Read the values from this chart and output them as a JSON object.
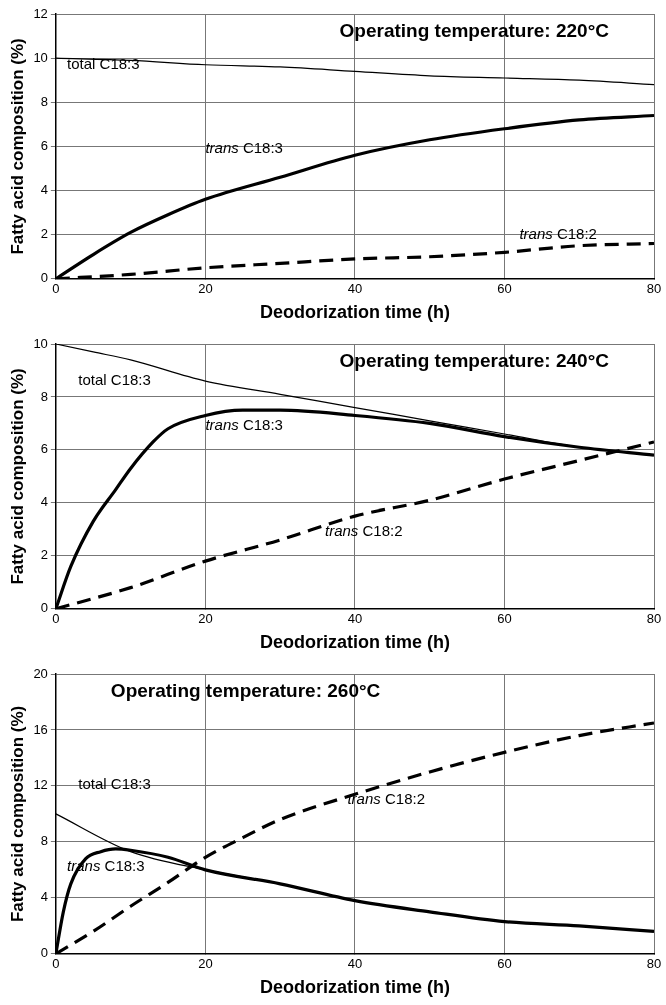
{
  "chart_data": [
    {
      "type": "line",
      "title": "Operating temperature: 220°C",
      "xlabel": "Deodorization time (h)",
      "ylabel": "Fatty acid composition (%)",
      "xlim": [
        0,
        80
      ],
      "xticks": [
        0,
        20,
        40,
        60,
        80
      ],
      "ylim": [
        0,
        12
      ],
      "yticks": [
        0,
        2,
        4,
        6,
        8,
        10,
        12
      ],
      "grid": true,
      "legend": false,
      "marker": "none",
      "series": [
        {
          "name": "total C18:3",
          "color": "#000000",
          "x": [
            0,
            10,
            20,
            30,
            40,
            50,
            60,
            70,
            80
          ],
          "values": [
            10,
            9.9,
            9.7,
            9.6,
            9.4,
            9.2,
            9.1,
            9.0,
            8.8
          ]
        },
        {
          "name": "trans C18:3",
          "color": "#000000",
          "x": [
            0,
            5,
            10,
            15,
            20,
            30,
            40,
            50,
            60,
            70,
            80
          ],
          "values": [
            0,
            1.1,
            2.1,
            2.9,
            3.6,
            4.6,
            5.6,
            6.3,
            6.8,
            7.2,
            7.4
          ]
        },
        {
          "name": "trans C18:2",
          "color": "#000000",
          "line_style": "dashed",
          "x": [
            0,
            10,
            20,
            30,
            40,
            50,
            60,
            70,
            80
          ],
          "values": [
            0,
            0.2,
            0.5,
            0.7,
            0.9,
            1.0,
            1.2,
            1.5,
            1.6
          ]
        }
      ]
    },
    {
      "type": "line",
      "title": "Operating temperature: 240°C",
      "xlabel": "Deodorization time (h)",
      "ylabel": "Fatty acid composition (%)",
      "xlim": [
        0,
        80
      ],
      "xticks": [
        0,
        20,
        40,
        60,
        80
      ],
      "ylim": [
        0,
        10
      ],
      "yticks": [
        0,
        2,
        4,
        6,
        8,
        10
      ],
      "grid": true,
      "legend": false,
      "marker": "none",
      "series": [
        {
          "name": "total C18:3",
          "color": "#000000",
          "x": [
            0,
            5,
            10,
            20,
            30,
            40,
            50,
            60,
            70,
            80
          ],
          "values": [
            10,
            9.7,
            9.4,
            8.6,
            8.1,
            7.6,
            7.1,
            6.6,
            6.1,
            5.8
          ]
        },
        {
          "name": "trans C18:3",
          "color": "#000000",
          "x": [
            0,
            2,
            5,
            8,
            10,
            13,
            15,
            20,
            25,
            30,
            40,
            50,
            60,
            70,
            80
          ],
          "values": [
            0,
            1.6,
            3.3,
            4.5,
            5.3,
            6.3,
            6.8,
            7.3,
            7.5,
            7.5,
            7.3,
            7.0,
            6.5,
            6.1,
            5.8
          ]
        },
        {
          "name": "trans C18:2",
          "color": "#000000",
          "line_style": "dashed",
          "x": [
            0,
            10,
            20,
            30,
            40,
            50,
            60,
            70,
            80
          ],
          "values": [
            0,
            0.8,
            1.8,
            2.6,
            3.5,
            4.1,
            4.9,
            5.6,
            6.3
          ]
        }
      ]
    },
    {
      "type": "line",
      "title": "Operating temperature: 260°C",
      "xlabel": "Deodorization time (h)",
      "ylabel": "Fatty acid composition (%)",
      "xlim": [
        0,
        80
      ],
      "xticks": [
        0,
        20,
        40,
        60,
        80
      ],
      "ylim": [
        0,
        20
      ],
      "yticks": [
        0,
        4,
        8,
        12,
        16,
        20
      ],
      "grid": true,
      "legend": false,
      "marker": "none",
      "series": [
        {
          "name": "total C18:3",
          "color": "#000000",
          "x": [
            0,
            10,
            20,
            30,
            40,
            50,
            60,
            70,
            80
          ],
          "values": [
            10,
            7.3,
            6.0,
            5.0,
            3.8,
            3.0,
            2.3,
            2.0,
            1.6
          ]
        },
        {
          "name": "trans C18:3",
          "color": "#000000",
          "x": [
            0,
            1,
            2,
            4,
            6,
            8,
            10,
            15,
            20,
            30,
            40,
            50,
            60,
            70,
            80
          ],
          "values": [
            0,
            3,
            5,
            6.8,
            7.3,
            7.5,
            7.4,
            6.9,
            6.0,
            5.0,
            3.8,
            3.0,
            2.3,
            2.0,
            1.6
          ]
        },
        {
          "name": "trans C18:2",
          "color": "#000000",
          "line_style": "dashed",
          "x": [
            0,
            5,
            10,
            15,
            20,
            25,
            30,
            40,
            50,
            60,
            70,
            80
          ],
          "values": [
            0,
            1.6,
            3.4,
            5.1,
            6.9,
            8.3,
            9.6,
            11.4,
            13.0,
            14.4,
            15.6,
            16.5
          ]
        }
      ]
    }
  ]
}
